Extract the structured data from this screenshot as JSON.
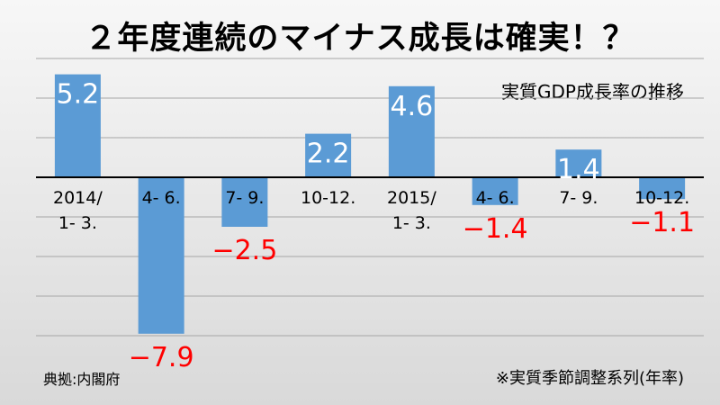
{
  "title": "２年度連続のマイナス成長は確実！？",
  "source": "典拠:内閣府",
  "footnote": "※実質季節調整系列(年率)",
  "colors": {
    "bar": "#5b9bd5",
    "positive_label": "#ffffff",
    "negative_label": "#ff0000",
    "grid": "#a6a6a6",
    "axis": "#000000"
  },
  "chart_data": {
    "type": "bar",
    "subtitle": "実質GDP成長率の推移",
    "categories": [
      "2014/\n1- 3.",
      "4- 6.",
      "7- 9.",
      "10-12.",
      "2015/\n1- 3.",
      "4- 6.",
      "7- 9.",
      "10-12."
    ],
    "values": [
      5.2,
      -7.9,
      -2.5,
      2.2,
      4.6,
      -1.4,
      1.4,
      -1.1
    ],
    "value_labels": [
      "5.2",
      "−7.9",
      "−2.5",
      "2.2",
      "4.6",
      "−1.4",
      "1.4",
      "−1.1"
    ],
    "ylim": [
      -8,
      6
    ],
    "grid": true,
    "legend": "none"
  }
}
